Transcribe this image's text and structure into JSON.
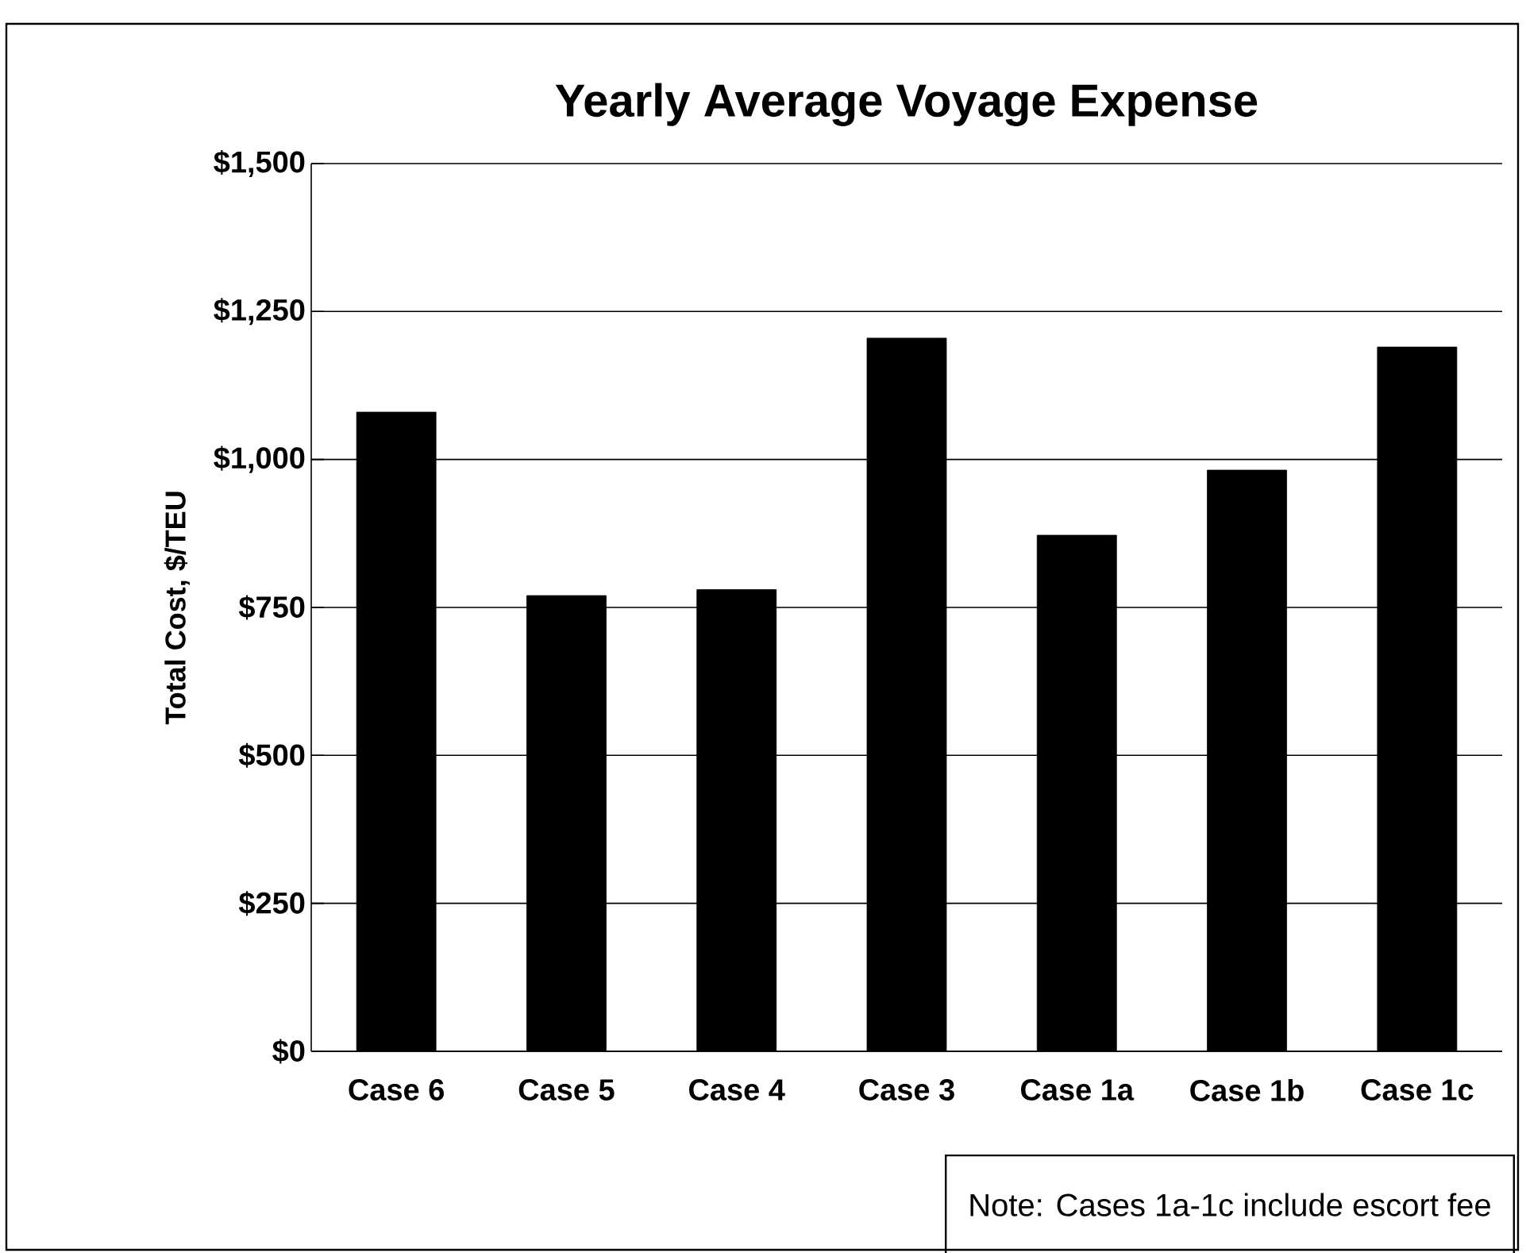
{
  "chart_data": {
    "type": "bar",
    "title": "Yearly Average Voyage Expense",
    "ylabel": "Total Cost, $/TEU",
    "categories": [
      "Case 6",
      "Case 5",
      "Case 4",
      "Case 3",
      "Case 1a",
      "Case 1b",
      "Case 1c"
    ],
    "values": [
      1080,
      770,
      780,
      1205,
      872,
      982,
      1190
    ],
    "color": "#000000",
    "ylim": [
      0,
      1500
    ],
    "yticks": [
      {
        "value": 0,
        "label": "$0"
      },
      {
        "value": 250,
        "label": "$250"
      },
      {
        "value": 500,
        "label": "$500"
      },
      {
        "value": 750,
        "label": "$750"
      },
      {
        "value": 1000,
        "label": "$1,000"
      },
      {
        "value": 1250,
        "label": "$1,250"
      },
      {
        "value": 1500,
        "label": "$1,500"
      }
    ],
    "grid": "y",
    "annotations": [
      "Note: Cases 1a-1c include escort fee"
    ]
  }
}
